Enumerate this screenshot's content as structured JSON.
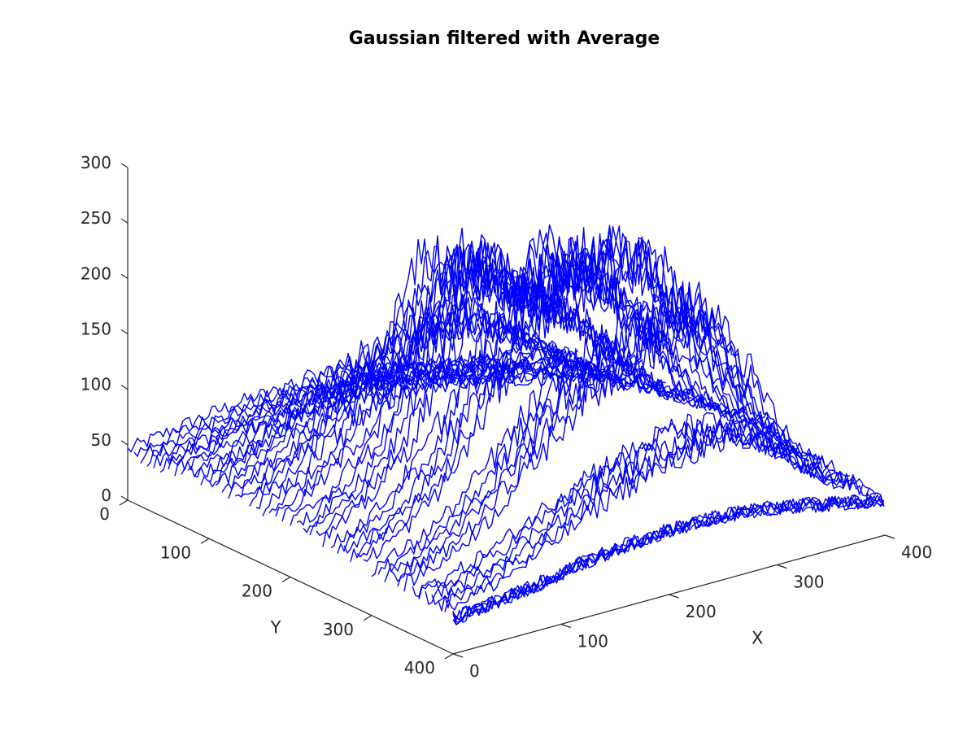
{
  "chart_data": {
    "type": "line",
    "subtype": "3d-waterfall-mesh",
    "title": "Gaussian filtered with Average",
    "xlabel": "X",
    "ylabel": "Y",
    "zlabel": "",
    "xlim": [
      0,
      400
    ],
    "ylim": [
      0,
      400
    ],
    "zlim": [
      0,
      300
    ],
    "xticks": [
      0,
      100,
      200,
      300,
      400
    ],
    "yticks": [
      0,
      100,
      200,
      300,
      400
    ],
    "zticks": [
      0,
      50,
      100,
      150,
      200,
      250,
      300
    ],
    "grid": false,
    "legend": "none",
    "series_color": "#0000ff",
    "series": [
      {
        "y": 0,
        "profile": [
          [
            0,
            45
          ],
          [
            40,
            52
          ],
          [
            80,
            58
          ],
          [
            120,
            62
          ],
          [
            160,
            60
          ],
          [
            200,
            55
          ],
          [
            240,
            50
          ],
          [
            280,
            46
          ],
          [
            320,
            40
          ],
          [
            360,
            35
          ],
          [
            400,
            32
          ]
        ]
      },
      {
        "y": 50,
        "profile": [
          [
            0,
            48
          ],
          [
            40,
            60
          ],
          [
            80,
            75
          ],
          [
            120,
            90
          ],
          [
            160,
            95
          ],
          [
            200,
            85
          ],
          [
            240,
            75
          ],
          [
            280,
            65
          ],
          [
            320,
            55
          ],
          [
            360,
            42
          ],
          [
            400,
            35
          ]
        ]
      },
      {
        "y": 100,
        "profile": [
          [
            0,
            50
          ],
          [
            40,
            70
          ],
          [
            80,
            95
          ],
          [
            120,
            120
          ],
          [
            160,
            135
          ],
          [
            200,
            150
          ],
          [
            240,
            140
          ],
          [
            280,
            110
          ],
          [
            320,
            80
          ],
          [
            360,
            55
          ],
          [
            400,
            38
          ]
        ]
      },
      {
        "y": 150,
        "profile": [
          [
            0,
            50
          ],
          [
            40,
            75
          ],
          [
            80,
            110
          ],
          [
            120,
            150
          ],
          [
            160,
            230
          ],
          [
            200,
            205
          ],
          [
            240,
            180
          ],
          [
            280,
            150
          ],
          [
            320,
            110
          ],
          [
            360,
            65
          ],
          [
            400,
            40
          ]
        ]
      },
      {
        "y": 200,
        "profile": [
          [
            0,
            48
          ],
          [
            40,
            70
          ],
          [
            80,
            110
          ],
          [
            120,
            190
          ],
          [
            160,
            250
          ],
          [
            200,
            215
          ],
          [
            240,
            230
          ],
          [
            280,
            190
          ],
          [
            320,
            140
          ],
          [
            360,
            75
          ],
          [
            400,
            42
          ]
        ]
      },
      {
        "y": 250,
        "profile": [
          [
            0,
            45
          ],
          [
            40,
            65
          ],
          [
            80,
            100
          ],
          [
            120,
            160
          ],
          [
            160,
            215
          ],
          [
            200,
            235
          ],
          [
            240,
            250
          ],
          [
            280,
            230
          ],
          [
            320,
            160
          ],
          [
            360,
            80
          ],
          [
            400,
            40
          ]
        ]
      },
      {
        "y": 300,
        "profile": [
          [
            0,
            42
          ],
          [
            40,
            55
          ],
          [
            80,
            80
          ],
          [
            120,
            120
          ],
          [
            160,
            160
          ],
          [
            200,
            180
          ],
          [
            240,
            195
          ],
          [
            280,
            215
          ],
          [
            320,
            150
          ],
          [
            360,
            70
          ],
          [
            400,
            38
          ]
        ]
      },
      {
        "y": 350,
        "profile": [
          [
            0,
            38
          ],
          [
            40,
            45
          ],
          [
            80,
            60
          ],
          [
            120,
            80
          ],
          [
            160,
            100
          ],
          [
            200,
            110
          ],
          [
            240,
            120
          ],
          [
            280,
            115
          ],
          [
            320,
            90
          ],
          [
            360,
            55
          ],
          [
            400,
            35
          ]
        ]
      },
      {
        "y": 400,
        "profile": [
          [
            0,
            32
          ],
          [
            40,
            36
          ],
          [
            80,
            42
          ],
          [
            120,
            50
          ],
          [
            160,
            55
          ],
          [
            200,
            58
          ],
          [
            240,
            58
          ],
          [
            280,
            55
          ],
          [
            320,
            48
          ],
          [
            360,
            40
          ],
          [
            400,
            32
          ]
        ]
      }
    ]
  }
}
